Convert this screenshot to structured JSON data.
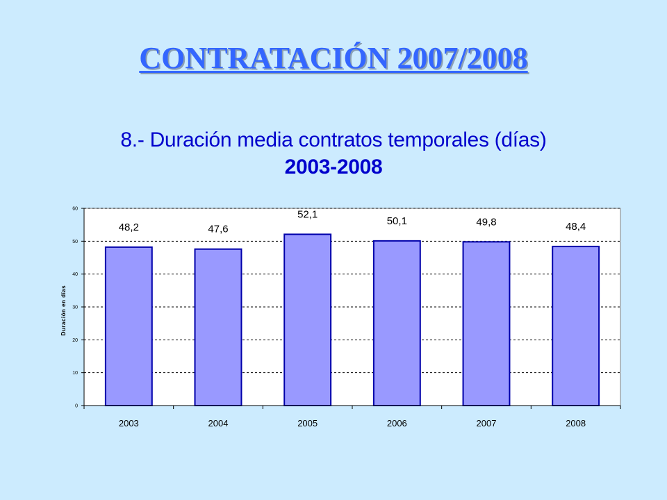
{
  "slide_title": "CONTRATACIÓN 2007/2008",
  "chart_data": {
    "type": "bar",
    "title_line1": "8.- Duración media contratos temporales (días)",
    "title_line2": "2003-2008",
    "xlabel": "",
    "ylabel": "Duración en días",
    "categories": [
      "2003",
      "2004",
      "2005",
      "2006",
      "2007",
      "2008"
    ],
    "values": [
      48.2,
      47.6,
      52.1,
      50.1,
      49.8,
      48.4
    ],
    "value_labels": [
      "48,2",
      "47,6",
      "52,1",
      "50,1",
      "49,8",
      "48,4"
    ],
    "ylim": [
      0,
      60
    ],
    "yticks": [
      "0",
      "10",
      "20",
      "30",
      "40",
      "50",
      "60"
    ],
    "grid": true,
    "legend": "none",
    "bar_color": "#9999ff",
    "bar_border_color": "#0000aa",
    "plot_background": "#ffffff"
  }
}
